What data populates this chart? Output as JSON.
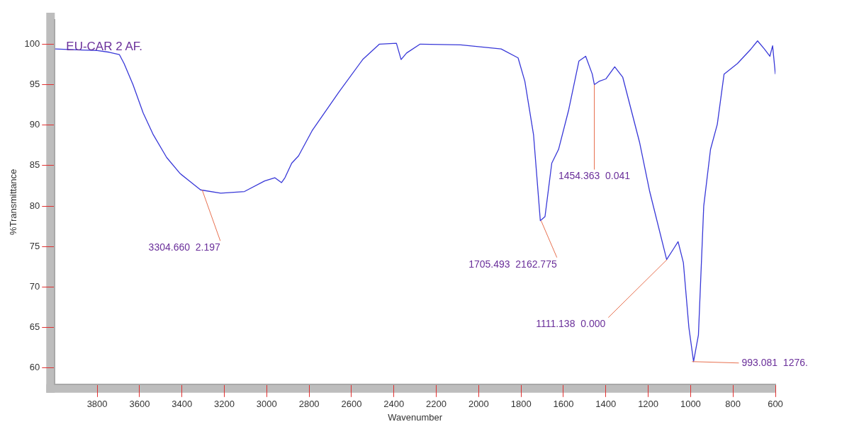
{
  "chart_data": {
    "type": "line",
    "title": "EU-CAR 2 AF.",
    "xlabel": "Wavenumber",
    "ylabel": "%Transmittance",
    "xlim": [
      4000,
      600
    ],
    "ylim": [
      58,
      103
    ],
    "xticks": [
      3800,
      3600,
      3400,
      3200,
      3000,
      2800,
      2600,
      2400,
      2200,
      2000,
      1800,
      1600,
      1400,
      1200,
      1000,
      800,
      600
    ],
    "yticks": [
      60,
      65,
      70,
      75,
      80,
      85,
      90,
      95,
      100
    ],
    "grid": false,
    "legend": false,
    "marker": "none",
    "line_style": "solid",
    "series": [
      {
        "color": "#3838d8",
        "x": [
          3998,
          3900,
          3800,
          3743,
          3695,
          3673,
          3631,
          3583,
          3535,
          3472,
          3408,
          3312,
          3217,
          3105,
          3010,
          2962,
          2930,
          2914,
          2882,
          2850,
          2786,
          2659,
          2547,
          2468,
          2388,
          2366,
          2340,
          2276,
          2085,
          1894,
          1814,
          1782,
          1741,
          1709,
          1687,
          1655,
          1623,
          1575,
          1527,
          1495,
          1464,
          1454,
          1432,
          1400,
          1358,
          1320,
          1241,
          1193,
          1113,
          1081,
          1059,
          1034,
          1008,
          986,
          963,
          938,
          906,
          874,
          842,
          779,
          715,
          684,
          652,
          626,
          613,
          600
        ],
        "values": [
          99.4,
          99.3,
          99.2,
          99.0,
          98.7,
          97.6,
          95.0,
          91.5,
          88.8,
          86.0,
          84.0,
          82.0,
          81.6,
          81.8,
          83.1,
          83.5,
          82.9,
          83.5,
          85.3,
          86.2,
          89.3,
          94.1,
          98.1,
          100.0,
          100.1,
          98.1,
          98.9,
          100.0,
          99.9,
          99.4,
          98.3,
          95.4,
          88.8,
          78.2,
          78.7,
          85.3,
          87.0,
          91.9,
          97.9,
          98.5,
          96.3,
          95.0,
          95.4,
          95.7,
          97.2,
          95.9,
          87.9,
          81.8,
          73.4,
          74.7,
          75.6,
          73.0,
          65.0,
          60.8,
          64.1,
          80.0,
          87.0,
          90.1,
          96.3,
          97.6,
          99.4,
          100.4,
          99.4,
          98.5,
          99.8,
          96.3
        ]
      }
    ],
    "annotations": [
      {
        "text": "3304.660  2.197",
        "x": 3304.66,
        "y": 82.0
      },
      {
        "text": "1705.493  2162.775",
        "x": 1705.493,
        "y": 78.2
      },
      {
        "text": "1454.363  0.041",
        "x": 1454.363,
        "y": 95.0
      },
      {
        "text": "1111.138  0.000",
        "x": 1111.138,
        "y": 73.4
      },
      {
        "text": "993.081  1276.",
        "x": 993.081,
        "y": 60.8
      }
    ]
  }
}
